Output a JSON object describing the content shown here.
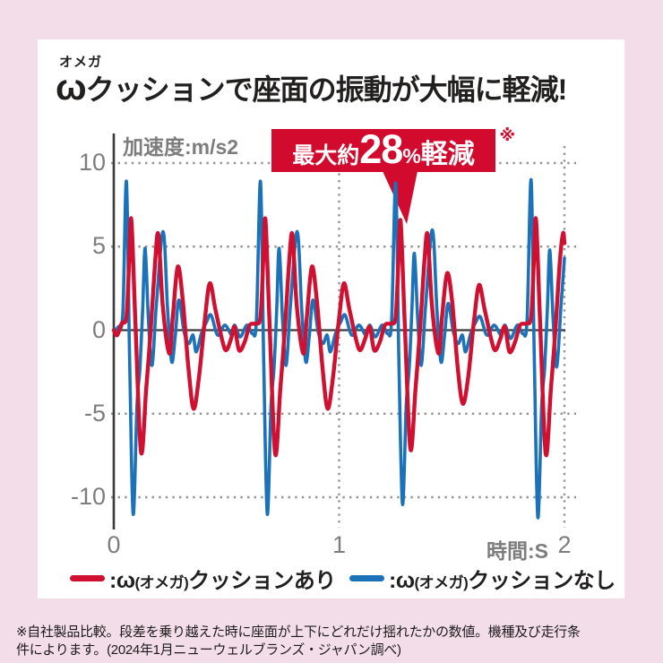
{
  "page": {
    "bg": "#f3dde8",
    "card_bg": "#ffffff"
  },
  "title": {
    "furigana": "オメガ",
    "omega": "ω",
    "rest": "クッションで座面の振動が大幅に軽減!"
  },
  "badge": {
    "prefix": "最大約",
    "value": "28",
    "percent": "%",
    "suffix": "軽減",
    "note": "※",
    "bg": "#d20a2d"
  },
  "legend": {
    "items": [
      {
        "key": "with-cushion",
        "color": "#d01030",
        "colon_omega": ":ω",
        "paren": "(オメガ)",
        "rest": "クッションあり"
      },
      {
        "key": "without-cushion",
        "color": "#1b72b9",
        "colon_omega": ":ω",
        "paren": "(オメガ)",
        "rest": "クッションなし"
      }
    ]
  },
  "footnote": {
    "lines": [
      "※自社製品比較。段差を乗り越えた時に座面が上下にどれだけ揺れたかの数値。機種及び走行条",
      "件によります。(2024年1月ニューウェルブランズ・ジャパン調べ)"
    ]
  },
  "chart_data": {
    "type": "line",
    "title": "座面の振動比較",
    "xlabel": "時間:S",
    "ylabel": "加速度:m/s2",
    "xlim": [
      0,
      2
    ],
    "ylim": [
      -12,
      11
    ],
    "x_ticks": [
      0,
      1,
      2
    ],
    "x_tick_labels": [
      "0",
      "1",
      "2"
    ],
    "y_ticks": [
      10,
      5,
      0,
      -5,
      -10
    ],
    "y_tick_labels": [
      "10",
      "5",
      "0",
      "-5",
      "-10"
    ],
    "grid": "dotted",
    "legend_position": "bottom",
    "annotation": {
      "label": "最大約28%軽減",
      "note": "※",
      "arrow_t": 1.27
    },
    "series": [
      {
        "key": "with-cushion",
        "name": "ω(オメガ)クッションあり",
        "color": "#d01030",
        "stroke_width": 4.4,
        "points": [
          [
            0,
            0
          ],
          [
            0.015,
            -0.3
          ],
          [
            0.035,
            0.4
          ],
          [
            0.056,
            0.8
          ],
          [
            0.068,
            4
          ],
          [
            0.078,
            6.6
          ],
          [
            0.096,
            0.5
          ],
          [
            0.121,
            -7.3
          ],
          [
            0.144,
            -3.5
          ],
          [
            0.164,
            0
          ],
          [
            0.184,
            4.2
          ],
          [
            0.198,
            5.7
          ],
          [
            0.217,
            1.5
          ],
          [
            0.246,
            -1.4
          ],
          [
            0.262,
            0.8
          ],
          [
            0.284,
            3.8
          ],
          [
            0.306,
            1.8
          ],
          [
            0.331,
            -2.2
          ],
          [
            0.354,
            -4.7
          ],
          [
            0.378,
            -2.8
          ],
          [
            0.404,
            0.6
          ],
          [
            0.426,
            2.8
          ],
          [
            0.45,
            1.3
          ],
          [
            0.481,
            -0.6
          ],
          [
            0.499,
            -1.2
          ],
          [
            0.521,
            -0.5
          ],
          [
            0.536,
            0.2
          ],
          [
            0.556,
            -1.2
          ],
          [
            0.581,
            -0.7
          ],
          [
            0.603,
            0.3
          ],
          [
            0.631,
            0.4
          ],
          [
            0.651,
            0.8
          ],
          [
            0.663,
            4
          ],
          [
            0.673,
            6.6
          ],
          [
            0.691,
            0.5
          ],
          [
            0.716,
            -7.4
          ],
          [
            0.739,
            -3.5
          ],
          [
            0.759,
            0
          ],
          [
            0.779,
            4.2
          ],
          [
            0.793,
            5.7
          ],
          [
            0.812,
            1.5
          ],
          [
            0.841,
            -1.4
          ],
          [
            0.857,
            0.8
          ],
          [
            0.879,
            3.8
          ],
          [
            0.901,
            1.8
          ],
          [
            0.926,
            -2.2
          ],
          [
            0.949,
            -4.7
          ],
          [
            0.973,
            -2.8
          ],
          [
            0.999,
            0.6
          ],
          [
            1.021,
            2.8
          ],
          [
            1.045,
            1.3
          ],
          [
            1.076,
            -0.6
          ],
          [
            1.094,
            -1.2
          ],
          [
            1.116,
            -0.5
          ],
          [
            1.136,
            0.2
          ],
          [
            1.156,
            -1.2
          ],
          [
            1.181,
            -0.7
          ],
          [
            1.203,
            0.3
          ],
          [
            1.231,
            0.4
          ],
          [
            1.251,
            0.8
          ],
          [
            1.263,
            4
          ],
          [
            1.273,
            6.5
          ],
          [
            1.291,
            0.5
          ],
          [
            1.316,
            -7.1
          ],
          [
            1.339,
            -3.5
          ],
          [
            1.359,
            0
          ],
          [
            1.379,
            4.2
          ],
          [
            1.393,
            5.7
          ],
          [
            1.412,
            1.5
          ],
          [
            1.441,
            -1.4
          ],
          [
            1.457,
            0.8
          ],
          [
            1.479,
            3.4
          ],
          [
            1.501,
            1.8
          ],
          [
            1.526,
            -2.2
          ],
          [
            1.549,
            -4.4
          ],
          [
            1.573,
            -2.8
          ],
          [
            1.599,
            0.6
          ],
          [
            1.621,
            2.7
          ],
          [
            1.645,
            1.3
          ],
          [
            1.676,
            -0.6
          ],
          [
            1.694,
            -1.2
          ],
          [
            1.716,
            -0.5
          ],
          [
            1.736,
            0.2
          ],
          [
            1.756,
            -1.3
          ],
          [
            1.781,
            -0.7
          ],
          [
            1.803,
            0.3
          ],
          [
            1.831,
            0.4
          ],
          [
            1.852,
            0.8
          ],
          [
            1.864,
            4
          ],
          [
            1.874,
            6.6
          ],
          [
            1.892,
            0.5
          ],
          [
            1.917,
            -7.4
          ],
          [
            1.94,
            -3.5
          ],
          [
            1.96,
            0
          ],
          [
            1.98,
            4.2
          ],
          [
            1.994,
            5.8
          ],
          [
            2,
            5.2
          ]
        ]
      },
      {
        "key": "without-cushion",
        "name": "ω(オメガ)クッションなし",
        "color": "#1b72b9",
        "stroke_width": 3.6,
        "points": [
          [
            0,
            0
          ],
          [
            0.02,
            0.2
          ],
          [
            0.04,
            1
          ],
          [
            0.056,
            8.9
          ],
          [
            0.07,
            -1.5
          ],
          [
            0.086,
            -11
          ],
          [
            0.103,
            -4.5
          ],
          [
            0.116,
            -2.3
          ],
          [
            0.128,
            1.2
          ],
          [
            0.139,
            4.9
          ],
          [
            0.154,
            0.6
          ],
          [
            0.17,
            -2.1
          ],
          [
            0.189,
            1.5
          ],
          [
            0.219,
            5.9
          ],
          [
            0.239,
            1.2
          ],
          [
            0.257,
            -1.9
          ],
          [
            0.273,
            -0.3
          ],
          [
            0.289,
            1.8
          ],
          [
            0.312,
            -0.1
          ],
          [
            0.333,
            -0.8
          ],
          [
            0.352,
            -0.3
          ],
          [
            0.366,
            -1.3
          ],
          [
            0.389,
            -0.2
          ],
          [
            0.412,
            0.5
          ],
          [
            0.432,
            0.9
          ],
          [
            0.461,
            -0.3
          ],
          [
            0.493,
            0.3
          ],
          [
            0.524,
            -0.3
          ],
          [
            0.536,
            0.3
          ],
          [
            0.561,
            -0.4
          ],
          [
            0.591,
            0.3
          ],
          [
            0.616,
            -0.2
          ],
          [
            0.633,
            0.6
          ],
          [
            0.651,
            8.9
          ],
          [
            0.665,
            -1.5
          ],
          [
            0.681,
            -11
          ],
          [
            0.698,
            -4.5
          ],
          [
            0.711,
            -2.3
          ],
          [
            0.723,
            1.2
          ],
          [
            0.734,
            4.9
          ],
          [
            0.749,
            0.6
          ],
          [
            0.765,
            -2.1
          ],
          [
            0.784,
            1.5
          ],
          [
            0.814,
            5.9
          ],
          [
            0.834,
            1.2
          ],
          [
            0.852,
            -1.9
          ],
          [
            0.868,
            -0.3
          ],
          [
            0.884,
            1.8
          ],
          [
            0.907,
            -0.1
          ],
          [
            0.928,
            -0.8
          ],
          [
            0.947,
            -0.3
          ],
          [
            0.961,
            -1.3
          ],
          [
            0.984,
            -0.2
          ],
          [
            1.007,
            0.5
          ],
          [
            1.027,
            0.9
          ],
          [
            1.056,
            -0.3
          ],
          [
            1.088,
            0.3
          ],
          [
            1.119,
            -0.3
          ],
          [
            1.136,
            0.3
          ],
          [
            1.161,
            -0.4
          ],
          [
            1.191,
            0.3
          ],
          [
            1.216,
            -0.2
          ],
          [
            1.233,
            0.6
          ],
          [
            1.251,
            8.8
          ],
          [
            1.265,
            -1.5
          ],
          [
            1.281,
            -10.4
          ],
          [
            1.298,
            -4.5
          ],
          [
            1.311,
            -2.3
          ],
          [
            1.323,
            1.2
          ],
          [
            1.334,
            4.6
          ],
          [
            1.349,
            0.6
          ],
          [
            1.365,
            -2.1
          ],
          [
            1.384,
            1.5
          ],
          [
            1.414,
            6
          ],
          [
            1.434,
            1.2
          ],
          [
            1.452,
            -1.9
          ],
          [
            1.468,
            -0.3
          ],
          [
            1.484,
            1.6
          ],
          [
            1.507,
            -0.1
          ],
          [
            1.528,
            -0.8
          ],
          [
            1.547,
            -0.3
          ],
          [
            1.561,
            -1.3
          ],
          [
            1.584,
            -0.2
          ],
          [
            1.607,
            0.5
          ],
          [
            1.627,
            0.8
          ],
          [
            1.656,
            -0.3
          ],
          [
            1.688,
            0.3
          ],
          [
            1.719,
            -0.3
          ],
          [
            1.736,
            0.3
          ],
          [
            1.761,
            -0.5
          ],
          [
            1.791,
            0.3
          ],
          [
            1.816,
            -0.2
          ],
          [
            1.834,
            0.6
          ],
          [
            1.852,
            9
          ],
          [
            1.866,
            -1.5
          ],
          [
            1.882,
            -11.2
          ],
          [
            1.899,
            -4.5
          ],
          [
            1.912,
            -2.3
          ],
          [
            1.924,
            1.2
          ],
          [
            1.935,
            4.8
          ],
          [
            1.95,
            0.6
          ],
          [
            1.966,
            -2.2
          ],
          [
            1.985,
            1.5
          ],
          [
            2,
            4.3
          ]
        ]
      }
    ]
  }
}
